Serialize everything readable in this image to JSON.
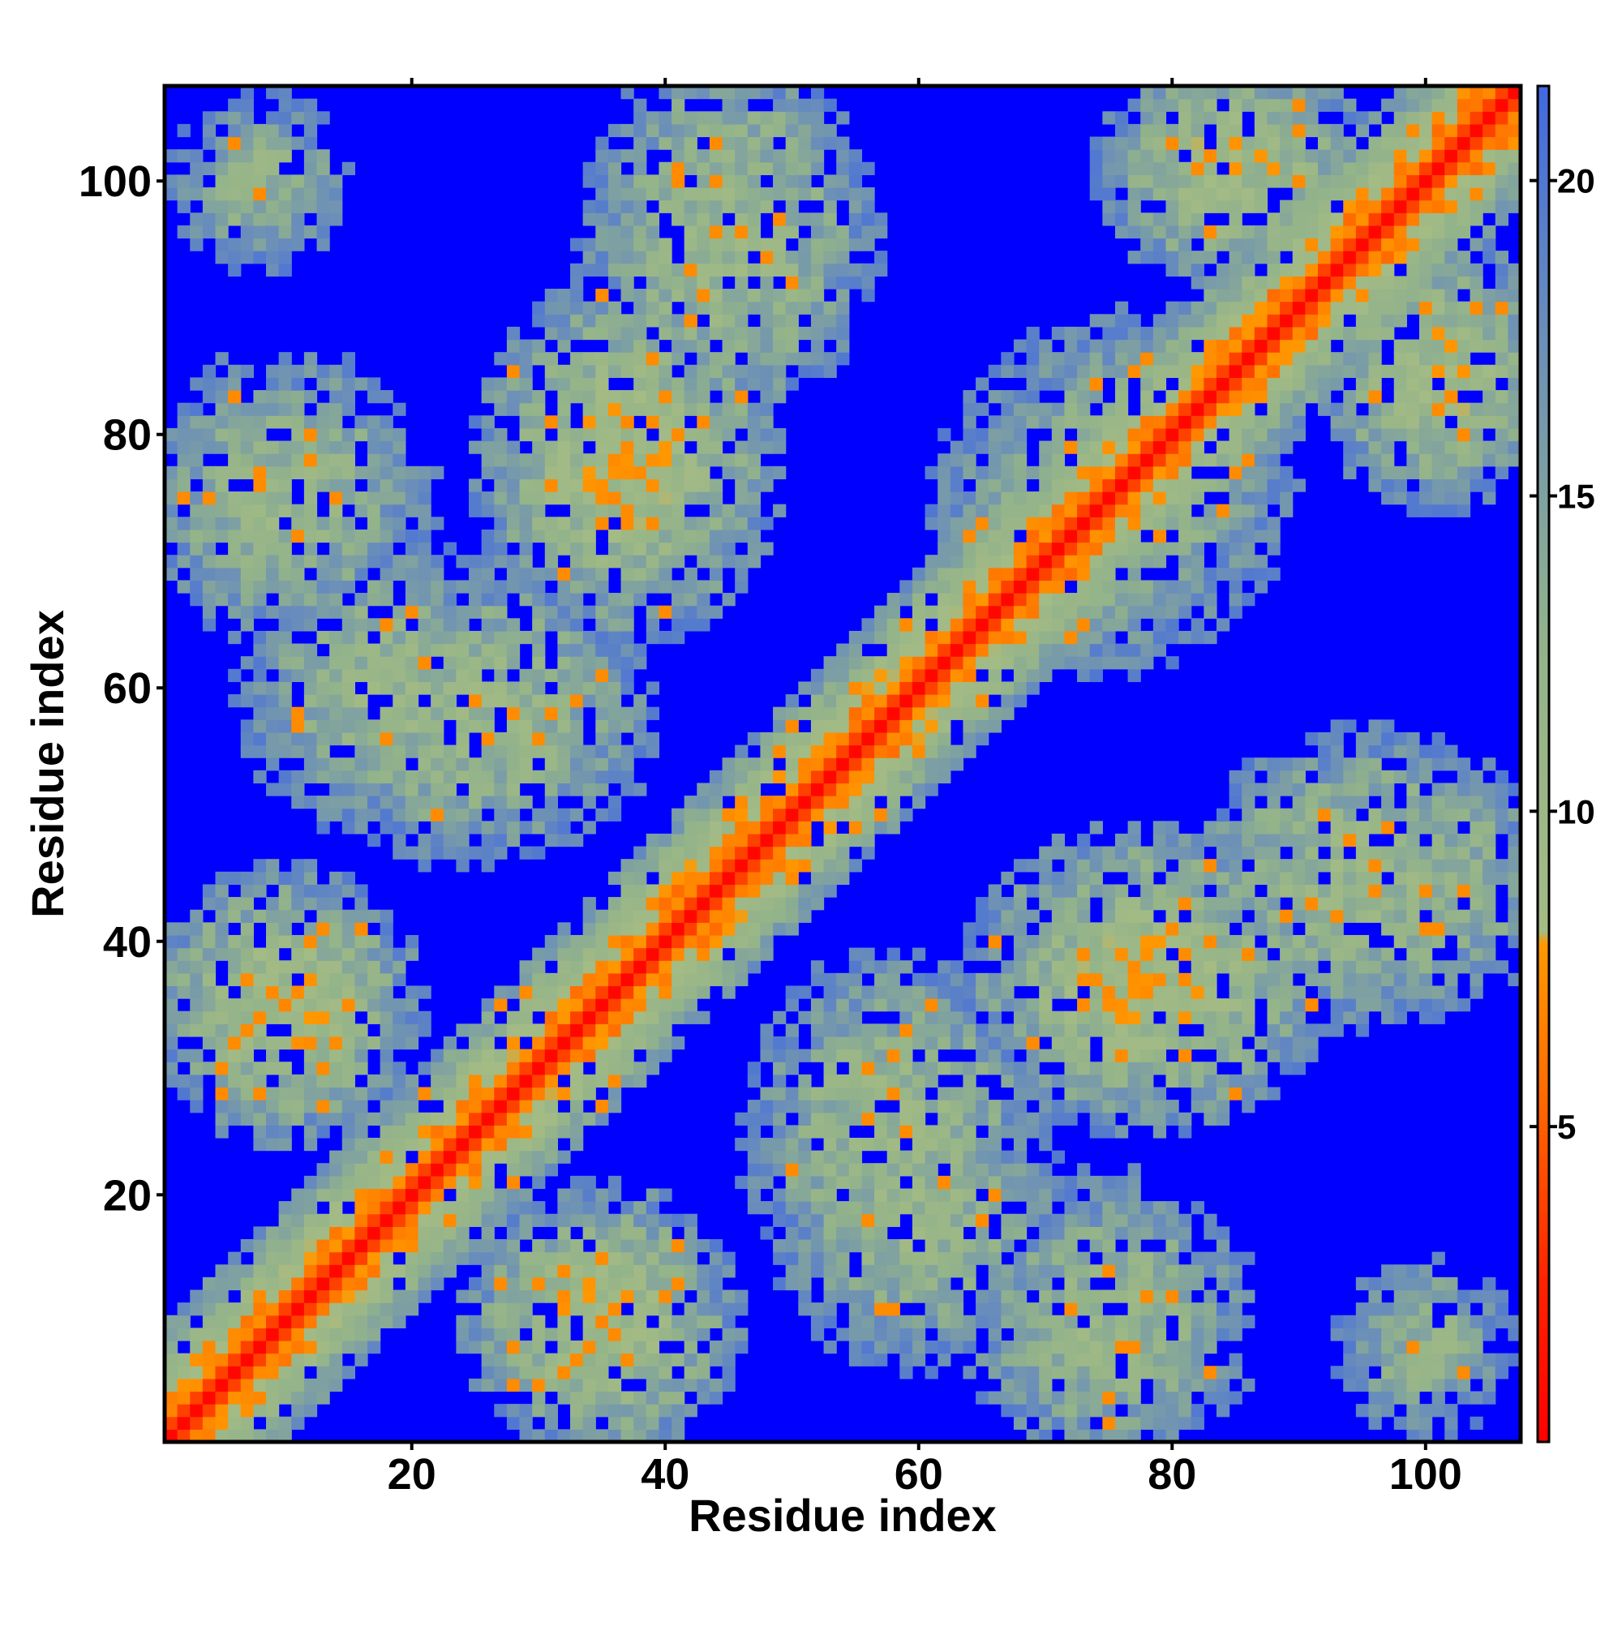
{
  "chart_data": {
    "type": "heatmap",
    "title": "",
    "xlabel": "Residue index",
    "ylabel": "Residue index",
    "n_residues": 107,
    "xlim": [
      1,
      107
    ],
    "ylim": [
      1,
      107
    ],
    "x_ticks": [
      20,
      40,
      60,
      80,
      100
    ],
    "y_ticks": [
      20,
      40,
      60,
      80,
      100
    ],
    "colorbar": {
      "ticks": [
        5,
        10,
        15,
        20
      ],
      "range": [
        0,
        21.5
      ],
      "stops": [
        {
          "value": 0,
          "color": "#ff0000"
        },
        {
          "value": 2.5,
          "color": "#ff2200"
        },
        {
          "value": 5.5,
          "color": "#ff6a00"
        },
        {
          "value": 7.9,
          "color": "#ff9900"
        },
        {
          "value": 8.1,
          "color": "#a4bb84"
        },
        {
          "value": 12.5,
          "color": "#93b38a"
        },
        {
          "value": 17.5,
          "color": "#6b8fb8"
        },
        {
          "value": 21.5,
          "color": "#4169e1"
        }
      ],
      "cutoff_color": "#0000ff"
    },
    "description_values": "Symmetric residue-residue distance map; main diagonal values near 0; strong anti-diagonal contact bands (e.g. 30-40 vs 70-80, 70-80 vs 35-40, 95-105 vs 75-80) with values about 5-8; off-diagonal regions beyond ~20 shown in blue cutoff color.",
    "contact_bands": [
      {
        "i_range": [
          1,
          107
        ],
        "j_offset": 0,
        "value": 0.5
      },
      {
        "i_range": [
          1,
          107
        ],
        "j_offset": 1,
        "value": 3.8
      },
      {
        "i_range": [
          1,
          107
        ],
        "j_offset": 2,
        "value": 6.0
      },
      {
        "i_range": [
          1,
          107
        ],
        "j_offset": 3,
        "value": 9.0
      },
      {
        "i_range": [
          1,
          107
        ],
        "j_offset": 4,
        "value": 11.5
      },
      {
        "i_range": [
          1,
          107
        ],
        "j_offset": 5,
        "value": 13.5
      }
    ],
    "contact_clusters": [
      {
        "cx": 37,
        "cy": 78,
        "sx": 10,
        "sy": 12,
        "peak": 9.5
      },
      {
        "cx": 75,
        "cy": 37,
        "sx": 10,
        "sy": 12,
        "peak": 9.5
      },
      {
        "cx": 85,
        "cy": 101,
        "sx": 9,
        "sy": 8,
        "peak": 10
      },
      {
        "cx": 101,
        "cy": 85,
        "sx": 9,
        "sy": 8,
        "peak": 10
      },
      {
        "cx": 10,
        "cy": 75,
        "sx": 10,
        "sy": 10,
        "peak": 11.5
      },
      {
        "cx": 75,
        "cy": 10,
        "sx": 10,
        "sy": 10,
        "peak": 11.5
      },
      {
        "cx": 25,
        "cy": 58,
        "sx": 12,
        "sy": 10,
        "peak": 11
      },
      {
        "cx": 58,
        "cy": 25,
        "sx": 12,
        "sy": 10,
        "peak": 11
      },
      {
        "cx": 45,
        "cy": 95,
        "sx": 10,
        "sy": 12,
        "peak": 11
      },
      {
        "cx": 95,
        "cy": 45,
        "sx": 10,
        "sy": 12,
        "peak": 11
      },
      {
        "cx": 10,
        "cy": 35,
        "sx": 9,
        "sy": 9,
        "peak": 9.5
      },
      {
        "cx": 35,
        "cy": 10,
        "sx": 9,
        "sy": 9,
        "peak": 9.5
      },
      {
        "cx": 60,
        "cy": 18,
        "sx": 10,
        "sy": 10,
        "peak": 11.5
      },
      {
        "cx": 18,
        "cy": 60,
        "sx": 10,
        "sy": 10,
        "peak": 11.5
      },
      {
        "cx": 8,
        "cy": 100,
        "sx": 6,
        "sy": 6,
        "peak": 12
      },
      {
        "cx": 100,
        "cy": 8,
        "sx": 6,
        "sy": 6,
        "peak": 12
      },
      {
        "cx": 100,
        "cy": 45,
        "sx": 8,
        "sy": 10,
        "peak": 12
      },
      {
        "cx": 45,
        "cy": 100,
        "sx": 8,
        "sy": 10,
        "peak": 12
      },
      {
        "cx": 78,
        "cy": 73,
        "sx": 14,
        "sy": 14,
        "peak": 11
      }
    ]
  }
}
